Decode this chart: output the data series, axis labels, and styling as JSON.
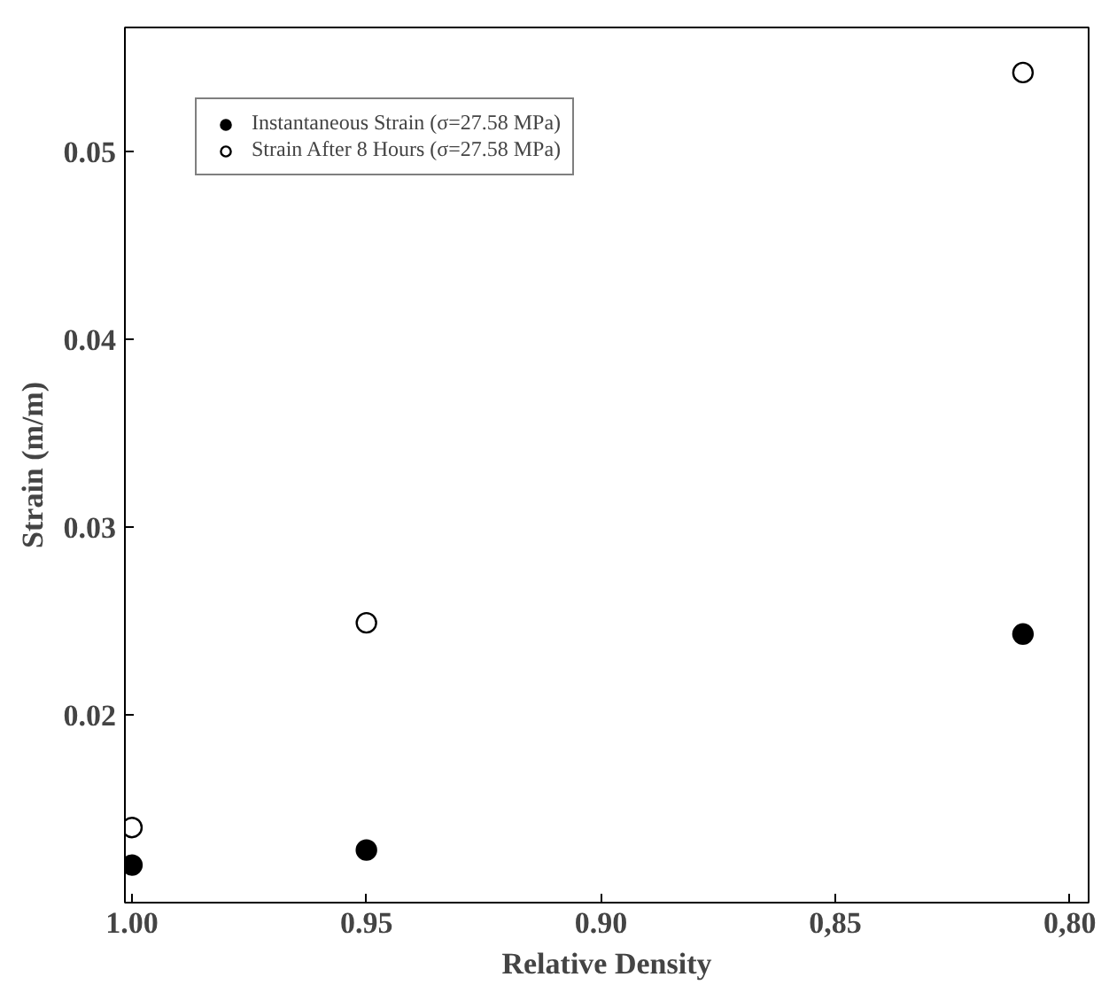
{
  "chart_data": {
    "type": "scatter",
    "xlabel": "Relative Density",
    "ylabel": "Strain (m/m)",
    "x": [
      1.0,
      0.95,
      0.81
    ],
    "series": [
      {
        "name": "Instantaneous Strain (σ=27.58 MPa)",
        "color": "#000000",
        "values": [
          0.012,
          0.0128,
          0.0243
        ]
      },
      {
        "name": "Strain After 8 Hours (σ=27.58 MPa)",
        "color": "#ffffff",
        "values": [
          0.014,
          0.0249,
          0.0542
        ]
      }
    ],
    "xlim": [
      1.0015,
      0.796
    ],
    "ylim": [
      0.01,
      0.0566
    ],
    "xticks": [
      {
        "value": 1.0,
        "label": "1.00"
      },
      {
        "value": 0.95,
        "label": "0.95"
      },
      {
        "value": 0.9,
        "label": "0.90"
      },
      {
        "value": 0.85,
        "label": "0,85"
      },
      {
        "value": 0.8,
        "label": "0,80"
      }
    ],
    "yticks": [
      {
        "value": 0.02,
        "label": "0.02"
      },
      {
        "value": 0.03,
        "label": "0.03"
      },
      {
        "value": 0.04,
        "label": "0.04"
      },
      {
        "value": 0.05,
        "label": "0.05"
      }
    ],
    "grid": false,
    "legend": "top left",
    "marker": "circle"
  }
}
